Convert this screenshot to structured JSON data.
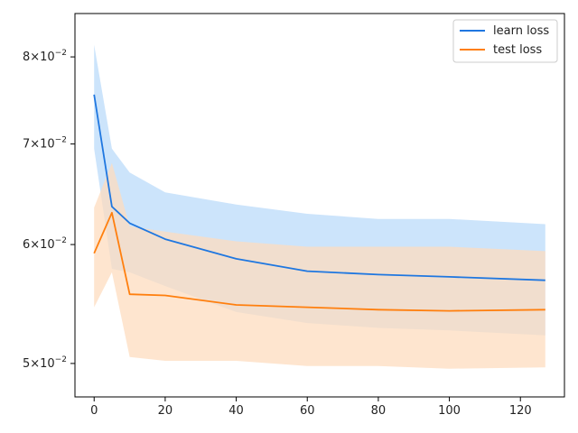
{
  "chart_data": {
    "type": "line",
    "title": "",
    "xlabel": "",
    "ylabel": "",
    "y_scale": "log",
    "xlim": [
      -5.4,
      132.4
    ],
    "ylim": [
      0.0475,
      0.0855
    ],
    "x_ticks": [
      0,
      20,
      40,
      60,
      80,
      100,
      120
    ],
    "y_ticks": [
      {
        "value": 0.05,
        "mantissa": "5",
        "base": "10",
        "exp": "−2"
      },
      {
        "value": 0.06,
        "mantissa": "6",
        "base": "10",
        "exp": "−2"
      },
      {
        "value": 0.07,
        "mantissa": "7",
        "base": "10",
        "exp": "−2"
      },
      {
        "value": 0.08,
        "mantissa": "8",
        "base": "10",
        "exp": "−2"
      }
    ],
    "times_sign": "×",
    "legend_position": "top-right",
    "grid": false,
    "x": [
      0,
      5,
      10,
      20,
      40,
      60,
      80,
      100,
      127
    ],
    "series": [
      {
        "name": "learn loss",
        "color": "#1f77e0",
        "band_color": "#cce4fb",
        "values": [
          0.0755,
          0.0636,
          0.062,
          0.0605,
          0.0587,
          0.0576,
          0.0573,
          0.0571,
          0.0568
        ],
        "band_upper": [
          0.0815,
          0.0695,
          0.067,
          0.065,
          0.0638,
          0.0629,
          0.0624,
          0.0624,
          0.0619
        ],
        "band_lower": [
          0.0695,
          0.0578,
          0.0575,
          0.0563,
          0.0541,
          0.0532,
          0.0528,
          0.0526,
          0.0522
        ]
      },
      {
        "name": "test loss",
        "color": "#ff7f0e",
        "band_color": "#fddcbf",
        "values": [
          0.0592,
          0.063,
          0.0556,
          0.0555,
          0.0547,
          0.0545,
          0.0543,
          0.0542,
          0.0543
        ],
        "band_upper": [
          0.0635,
          0.068,
          0.0617,
          0.0612,
          0.0603,
          0.0598,
          0.0598,
          0.0598,
          0.0594
        ],
        "band_lower": [
          0.0545,
          0.0575,
          0.0505,
          0.0502,
          0.0502,
          0.0498,
          0.0498,
          0.0496,
          0.0497
        ]
      }
    ]
  }
}
